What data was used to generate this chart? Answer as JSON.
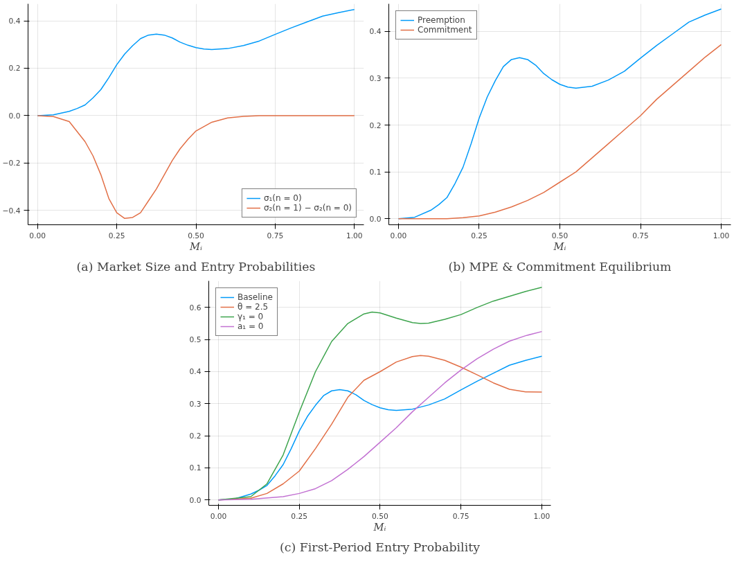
{
  "chart_data": [
    {
      "type": "line",
      "title": "(a) Market Size and Entry Probabilities",
      "xlabel": "Mᵢ",
      "legend": "bottom right",
      "grid": true,
      "xlim": [
        -0.03,
        1.03
      ],
      "ylim": [
        -0.461,
        0.472
      ],
      "xticks": [
        {
          "value": 0,
          "label": "0.00"
        },
        {
          "value": 0.25,
          "label": "0.25"
        },
        {
          "value": 0.5,
          "label": "0.50"
        },
        {
          "value": 0.75,
          "label": "0.75"
        },
        {
          "value": 1,
          "label": "1.00"
        }
      ],
      "yticks": [
        {
          "value": -0.4,
          "label": "−0.4"
        },
        {
          "value": -0.2,
          "label": "−0.2"
        },
        {
          "value": 0,
          "label": "0.0"
        },
        {
          "value": 0.2,
          "label": "0.2"
        },
        {
          "value": 0.4,
          "label": "0.4"
        }
      ],
      "series": [
        {
          "name": "σ₁(n = 0)",
          "color": "#009af9",
          "x": [
            0,
            0.05,
            0.1,
            0.125,
            0.15,
            0.175,
            0.2,
            0.225,
            0.25,
            0.275,
            0.3,
            0.325,
            0.35,
            0.375,
            0.4,
            0.425,
            0.45,
            0.475,
            0.5,
            0.525,
            0.55,
            0.6,
            0.65,
            0.7,
            0.75,
            0.8,
            0.85,
            0.9,
            0.95,
            1.0
          ],
          "values": [
            0,
            0.003,
            0.018,
            0.03,
            0.045,
            0.075,
            0.11,
            0.16,
            0.215,
            0.26,
            0.295,
            0.325,
            0.34,
            0.344,
            0.34,
            0.328,
            0.31,
            0.297,
            0.287,
            0.281,
            0.279,
            0.283,
            0.296,
            0.315,
            0.343,
            0.37,
            0.395,
            0.42,
            0.435,
            0.448
          ]
        },
        {
          "name": "σ₂(n = 1) − σ₂(n = 0)",
          "color": "#e26f46",
          "x": [
            0,
            0.05,
            0.1,
            0.15,
            0.175,
            0.2,
            0.225,
            0.25,
            0.275,
            0.3,
            0.325,
            0.35,
            0.375,
            0.4,
            0.425,
            0.45,
            0.475,
            0.5,
            0.55,
            0.6,
            0.65,
            0.7,
            0.8,
            0.9,
            1.0
          ],
          "values": [
            0,
            -0.004,
            -0.025,
            -0.11,
            -0.17,
            -0.25,
            -0.35,
            -0.41,
            -0.434,
            -0.43,
            -0.41,
            -0.36,
            -0.31,
            -0.25,
            -0.19,
            -0.14,
            -0.1,
            -0.065,
            -0.028,
            -0.01,
            -0.003,
            0,
            0,
            0,
            0
          ]
        }
      ]
    },
    {
      "type": "line",
      "title": "(b) MPE & Commitment Equilibrium",
      "xlabel": "Mᵢ",
      "legend": "top left",
      "grid": true,
      "xlim": [
        -0.03,
        1.03
      ],
      "ylim": [
        -0.013,
        0.459
      ],
      "xticks": [
        {
          "value": 0,
          "label": "0.00"
        },
        {
          "value": 0.25,
          "label": "0.25"
        },
        {
          "value": 0.5,
          "label": "0.50"
        },
        {
          "value": 0.75,
          "label": "0.75"
        },
        {
          "value": 1,
          "label": "1.00"
        }
      ],
      "yticks": [
        {
          "value": 0,
          "label": "0.0"
        },
        0.1,
        0.2,
        0.3,
        0.4
      ],
      "series": [
        {
          "name": "Preemption",
          "color": "#009af9",
          "x": [
            0,
            0.05,
            0.1,
            0.125,
            0.15,
            0.175,
            0.2,
            0.225,
            0.25,
            0.275,
            0.3,
            0.325,
            0.35,
            0.375,
            0.4,
            0.425,
            0.45,
            0.475,
            0.5,
            0.525,
            0.55,
            0.6,
            0.65,
            0.7,
            0.75,
            0.8,
            0.85,
            0.9,
            0.95,
            1.0
          ],
          "values": [
            0,
            0.003,
            0.018,
            0.03,
            0.045,
            0.075,
            0.11,
            0.16,
            0.215,
            0.26,
            0.295,
            0.325,
            0.34,
            0.344,
            0.34,
            0.328,
            0.31,
            0.297,
            0.287,
            0.281,
            0.279,
            0.283,
            0.296,
            0.315,
            0.343,
            0.37,
            0.395,
            0.42,
            0.435,
            0.448
          ]
        },
        {
          "name": "Commitment",
          "color": "#e26f46",
          "x": [
            0,
            0.15,
            0.2,
            0.25,
            0.3,
            0.35,
            0.4,
            0.45,
            0.5,
            0.55,
            0.6,
            0.65,
            0.7,
            0.75,
            0.8,
            0.85,
            0.9,
            0.95,
            1.0
          ],
          "values": [
            0,
            0,
            0.002,
            0.006,
            0.014,
            0.025,
            0.039,
            0.056,
            0.078,
            0.1,
            0.13,
            0.16,
            0.19,
            0.22,
            0.255,
            0.285,
            0.315,
            0.345,
            0.372
          ]
        }
      ]
    },
    {
      "type": "line",
      "title": "(c) First-Period Entry Probability",
      "xlabel": "Mᵢ",
      "legend": "top left",
      "grid": true,
      "xlim": [
        -0.03,
        1.028
      ],
      "ylim": [
        -0.017,
        0.683
      ],
      "xticks": [
        {
          "value": 0,
          "label": "0.00"
        },
        {
          "value": 0.25,
          "label": "0.25"
        },
        {
          "value": 0.5,
          "label": "0.50"
        },
        {
          "value": 0.75,
          "label": "0.75"
        },
        {
          "value": 1,
          "label": "1.00"
        }
      ],
      "yticks": [
        {
          "value": 0,
          "label": "0.0"
        },
        0.1,
        0.2,
        0.3,
        0.4,
        0.5,
        0.6
      ],
      "series": [
        {
          "name": "Baseline",
          "color": "#009af9",
          "x": [
            0,
            0.05,
            0.1,
            0.125,
            0.15,
            0.175,
            0.2,
            0.225,
            0.25,
            0.275,
            0.3,
            0.325,
            0.35,
            0.375,
            0.4,
            0.425,
            0.45,
            0.475,
            0.5,
            0.525,
            0.55,
            0.6,
            0.65,
            0.7,
            0.75,
            0.8,
            0.85,
            0.9,
            0.95,
            1.0
          ],
          "values": [
            0,
            0.003,
            0.018,
            0.03,
            0.045,
            0.075,
            0.11,
            0.16,
            0.215,
            0.26,
            0.295,
            0.325,
            0.34,
            0.344,
            0.34,
            0.328,
            0.31,
            0.297,
            0.287,
            0.281,
            0.279,
            0.283,
            0.296,
            0.315,
            0.343,
            0.37,
            0.395,
            0.42,
            0.435,
            0.448
          ]
        },
        {
          "name": "θ = 2.5",
          "color": "#e26f46",
          "x": [
            0,
            0.1,
            0.15,
            0.2,
            0.25,
            0.3,
            0.35,
            0.4,
            0.45,
            0.5,
            0.55,
            0.6,
            0.625,
            0.65,
            0.7,
            0.75,
            0.8,
            0.85,
            0.9,
            0.95,
            1.0
          ],
          "values": [
            0,
            0.005,
            0.02,
            0.05,
            0.09,
            0.16,
            0.236,
            0.32,
            0.373,
            0.4,
            0.43,
            0.447,
            0.45,
            0.448,
            0.435,
            0.414,
            0.39,
            0.365,
            0.345,
            0.337,
            0.336
          ]
        },
        {
          "name": "γ₁ = 0",
          "color": "#3da44d",
          "x": [
            0,
            0.1,
            0.15,
            0.2,
            0.25,
            0.3,
            0.35,
            0.4,
            0.45,
            0.475,
            0.5,
            0.55,
            0.6,
            0.625,
            0.65,
            0.7,
            0.75,
            0.8,
            0.85,
            0.9,
            0.95,
            1.0
          ],
          "values": [
            0,
            0.01,
            0.05,
            0.14,
            0.274,
            0.4,
            0.494,
            0.55,
            0.58,
            0.586,
            0.583,
            0.567,
            0.553,
            0.55,
            0.551,
            0.563,
            0.578,
            0.6,
            0.62,
            0.635,
            0.65,
            0.663
          ]
        },
        {
          "name": "a₁ = 0",
          "color": "#c271d2",
          "x": [
            0,
            0.1,
            0.2,
            0.25,
            0.3,
            0.35,
            0.4,
            0.45,
            0.5,
            0.55,
            0.6,
            0.65,
            0.7,
            0.75,
            0.8,
            0.85,
            0.9,
            0.95,
            1.0
          ],
          "values": [
            0,
            0.002,
            0.01,
            0.02,
            0.035,
            0.06,
            0.095,
            0.135,
            0.18,
            0.225,
            0.275,
            0.32,
            0.365,
            0.405,
            0.44,
            0.47,
            0.495,
            0.512,
            0.525
          ]
        }
      ]
    }
  ]
}
